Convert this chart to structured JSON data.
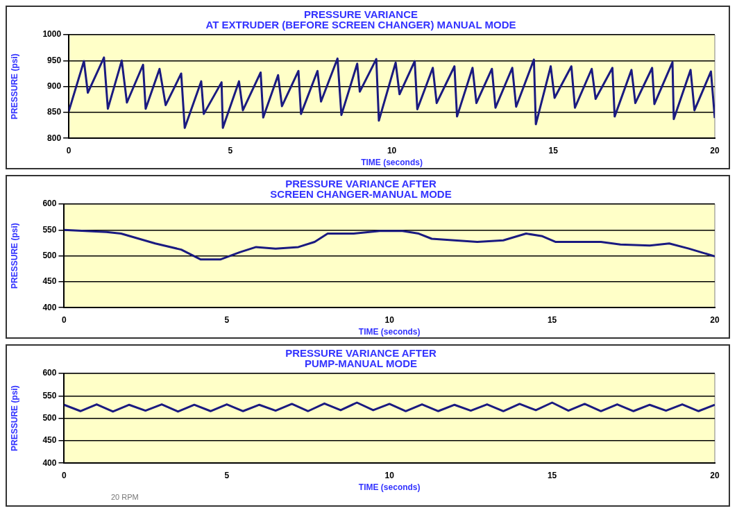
{
  "chart_data": [
    {
      "type": "line",
      "title": "PRESSURE VARIANCE\nAT EXTRUDER (BEFORE SCREEN CHANGER) MANUAL MODE",
      "xlabel": "TIME (seconds)",
      "ylabel": "PRESSURE (psi)",
      "color": "#1a1a80",
      "marker": "none",
      "grid": "y",
      "legend": false,
      "xlim": [
        0,
        20
      ],
      "xticks": [
        0,
        5,
        10,
        15,
        20
      ],
      "ylim": [
        800,
        1000
      ],
      "yticks": [
        800,
        850,
        900,
        950,
        1000
      ],
      "x": [
        0,
        0.47,
        0.59,
        1.09,
        1.21,
        1.64,
        1.8,
        2.3,
        2.38,
        2.81,
        3.0,
        3.48,
        3.59,
        4.1,
        4.18,
        4.73,
        4.77,
        5.27,
        5.39,
        5.94,
        6.02,
        6.48,
        6.6,
        7.11,
        7.19,
        7.7,
        7.81,
        8.32,
        8.44,
        8.93,
        9.01,
        9.52,
        9.6,
        10.12,
        10.24,
        10.71,
        10.79,
        11.27,
        11.39,
        11.94,
        12.02,
        12.5,
        12.62,
        13.1,
        13.21,
        13.73,
        13.85,
        14.4,
        14.46,
        14.92,
        15.04,
        15.56,
        15.67,
        16.19,
        16.31,
        16.83,
        16.9,
        17.42,
        17.54,
        18.06,
        18.13,
        18.69,
        18.73,
        19.25,
        19.37,
        19.88,
        20
      ],
      "values": [
        852,
        949,
        888,
        956,
        857,
        950,
        869,
        942,
        857,
        934,
        864,
        925,
        820,
        910,
        847,
        908,
        820,
        910,
        854,
        927,
        840,
        922,
        862,
        930,
        847,
        930,
        871,
        954,
        845,
        944,
        890,
        953,
        834,
        946,
        885,
        949,
        856,
        936,
        868,
        939,
        842,
        936,
        868,
        934,
        859,
        936,
        861,
        952,
        827,
        939,
        878,
        939,
        859,
        934,
        876,
        936,
        842,
        932,
        868,
        936,
        866,
        947,
        837,
        932,
        854,
        929,
        839
      ]
    },
    {
      "type": "line",
      "title": "PRESSURE VARIANCE AFTER\nSCREEN CHANGER-MANUAL MODE",
      "xlabel": "TIME (seconds)",
      "ylabel": "PRESSURE (psi)",
      "color": "#1a1a80",
      "marker": "none",
      "grid": "y",
      "legend": false,
      "xlim": [
        0,
        20
      ],
      "xticks": [
        0,
        5,
        10,
        15,
        20
      ],
      "ylim": [
        400,
        600
      ],
      "yticks": [
        400,
        450,
        500,
        550,
        600
      ],
      "x": [
        0,
        1.3,
        1.75,
        2.8,
        3.6,
        4.2,
        4.8,
        5.4,
        5.9,
        6.5,
        7.2,
        7.7,
        8.1,
        8.9,
        9.7,
        10.4,
        10.9,
        11.3,
        12.7,
        13.5,
        14.2,
        14.7,
        15.1,
        16.5,
        17.1,
        18.0,
        18.6,
        19.2,
        20
      ],
      "values": [
        550,
        546,
        543,
        524,
        512,
        493,
        493,
        507,
        517,
        514,
        517,
        527,
        543,
        543,
        548,
        548,
        543,
        533,
        527,
        530,
        543,
        538,
        527,
        527,
        522,
        520,
        524,
        514,
        499
      ]
    },
    {
      "type": "line",
      "title": "PRESSURE VARIANCE AFTER\nPUMP-MANUAL MODE",
      "xlabel": "TIME (seconds)",
      "ylabel": "PRESSURE (psi)",
      "color": "#1a1a80",
      "marker": "none",
      "grid": "y",
      "legend": false,
      "xlim": [
        0,
        20
      ],
      "xticks": [
        0,
        5,
        10,
        15,
        20
      ],
      "ylim": [
        400,
        600
      ],
      "yticks": [
        400,
        450,
        500,
        550,
        600
      ],
      "annotations": [
        "20 RPM"
      ],
      "x": [
        0,
        0.5,
        1,
        1.5,
        2,
        2.5,
        3,
        3.5,
        4,
        4.5,
        5,
        5.5,
        6,
        6.5,
        7,
        7.5,
        8,
        8.5,
        9,
        9.5,
        10,
        10.5,
        11,
        11.5,
        12,
        12.5,
        13,
        13.5,
        14,
        14.5,
        15,
        15.5,
        16,
        16.5,
        17,
        17.5,
        18,
        18.5,
        19,
        19.5,
        20
      ],
      "values": [
        530,
        516,
        531,
        515,
        530,
        517,
        531,
        515,
        530,
        516,
        531,
        516,
        530,
        517,
        532,
        516,
        533,
        518,
        535,
        518,
        532,
        516,
        531,
        516,
        530,
        517,
        531,
        516,
        532,
        518,
        535,
        517,
        532,
        516,
        531,
        516,
        530,
        517,
        531,
        516,
        530
      ]
    }
  ]
}
